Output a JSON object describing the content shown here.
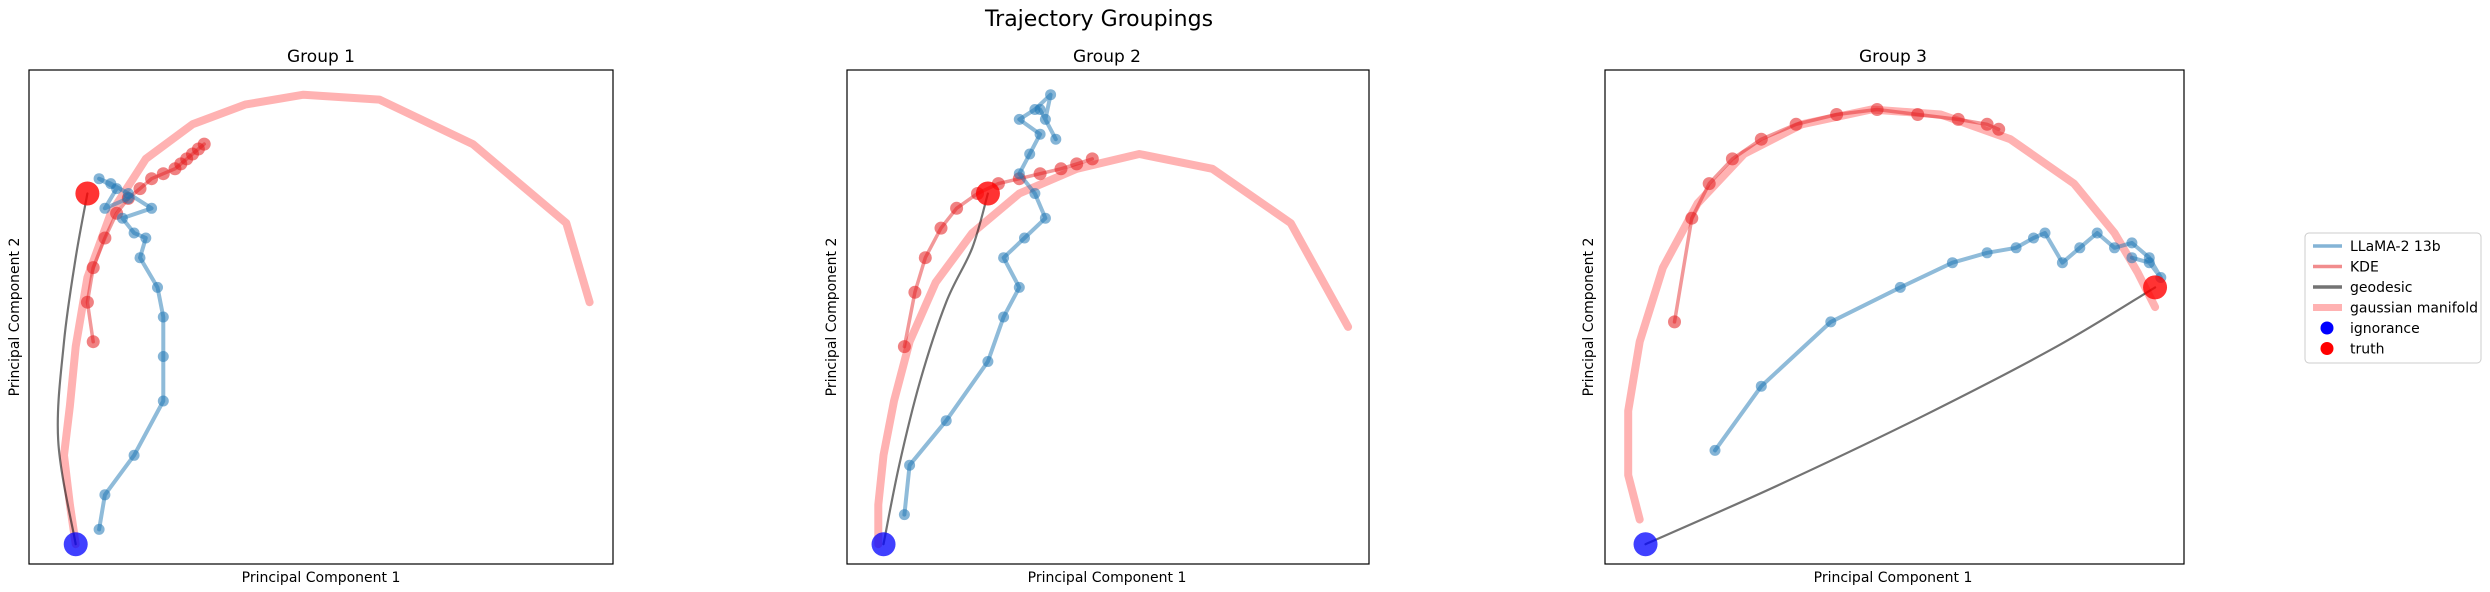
{
  "figure": {
    "title": "Trajectory Groupings"
  },
  "legend": {
    "placement": "right",
    "entries": [
      {
        "label": "LLaMA-2 13b",
        "kind": "line",
        "color": "#1f77b4",
        "alpha": 0.55
      },
      {
        "label": "KDE",
        "kind": "line",
        "color": "#e31a1c",
        "alpha": 0.5
      },
      {
        "label": "geodesic",
        "kind": "line",
        "color": "#000000",
        "alpha": 0.55
      },
      {
        "label": "gaussian manifold",
        "kind": "thickline",
        "color": "#ff0000",
        "alpha": 0.3
      },
      {
        "label": "ignorance",
        "kind": "dot",
        "color": "#0000ff"
      },
      {
        "label": "truth",
        "kind": "dot",
        "color": "#ff0000"
      }
    ]
  },
  "colors": {
    "llama": "#1f77b4",
    "kde": "#e31a1c",
    "geodesic": "#000000",
    "manifold": "#ff0000",
    "ignorance": "#0000ff",
    "truth": "#ff0000"
  },
  "chart_data": [
    {
      "type": "line",
      "title": "Group 1",
      "xlabel": "Principal Component 1",
      "ylabel": "Principal Component 2",
      "xlim": [
        0,
        100
      ],
      "ylim": [
        0,
        100
      ],
      "xticks": false,
      "yticks": false,
      "series": [
        {
          "name": "gaussian manifold",
          "points": [
            [
              8,
              4
            ],
            [
              7,
              12
            ],
            [
              6,
              22
            ],
            [
              7,
              32
            ],
            [
              8,
              44
            ],
            [
              10,
              58
            ],
            [
              14,
              71
            ],
            [
              20,
              82
            ],
            [
              28,
              89
            ],
            [
              37,
              93
            ],
            [
              47,
              95
            ],
            [
              60,
              94
            ],
            [
              76,
              85
            ],
            [
              92,
              69
            ],
            [
              96,
              53
            ]
          ]
        },
        {
          "name": "geodesic",
          "points": [
            [
              8,
              4
            ],
            [
              5,
              25
            ],
            [
              6,
              45
            ],
            [
              8,
              62
            ],
            [
              10,
              75
            ]
          ]
        },
        {
          "name": "KDE",
          "points": [
            [
              11,
              45
            ],
            [
              10,
              53
            ],
            [
              11,
              60
            ],
            [
              13,
              66
            ],
            [
              15,
              71
            ],
            [
              17,
              74
            ],
            [
              19,
              76
            ],
            [
              21,
              78
            ],
            [
              23,
              79
            ],
            [
              25,
              80
            ],
            [
              26,
              81
            ],
            [
              27,
              82
            ],
            [
              28,
              83
            ],
            [
              29,
              84
            ],
            [
              30,
              85
            ]
          ]
        },
        {
          "name": "LLaMA-2 13b",
          "points": [
            [
              12,
              7
            ],
            [
              13,
              14
            ],
            [
              18,
              22
            ],
            [
              23,
              33
            ],
            [
              23,
              42
            ],
            [
              23,
              50
            ],
            [
              22,
              56
            ],
            [
              19,
              62
            ],
            [
              20,
              66
            ],
            [
              18,
              67
            ],
            [
              16,
              70
            ],
            [
              21,
              72
            ],
            [
              17,
              75
            ],
            [
              14,
              77
            ],
            [
              12,
              78
            ],
            [
              15,
              76
            ],
            [
              13,
              72
            ],
            [
              17,
              74
            ]
          ]
        }
      ],
      "ignorance": [
        8,
        4
      ],
      "truth": [
        10,
        75
      ]
    },
    {
      "type": "line",
      "title": "Group 2",
      "xlabel": "Principal Component 1",
      "ylabel": "Principal Component 2",
      "xlim": [
        0,
        100
      ],
      "ylim": [
        0,
        100
      ],
      "xticks": false,
      "yticks": false,
      "series": [
        {
          "name": "gaussian manifold",
          "points": [
            [
              6,
              4
            ],
            [
              6,
              12
            ],
            [
              7,
              22
            ],
            [
              9,
              33
            ],
            [
              12,
              45
            ],
            [
              17,
              57
            ],
            [
              24,
              67
            ],
            [
              33,
              75
            ],
            [
              44,
              80
            ],
            [
              56,
              83
            ],
            [
              70,
              80
            ],
            [
              85,
              69
            ],
            [
              96,
              48
            ]
          ]
        },
        {
          "name": "geodesic",
          "points": [
            [
              7,
              4
            ],
            [
              10,
              20
            ],
            [
              14,
              37
            ],
            [
              19,
              53
            ],
            [
              24,
              64
            ],
            [
              27,
              75
            ]
          ]
        },
        {
          "name": "KDE",
          "points": [
            [
              11,
              44
            ],
            [
              13,
              55
            ],
            [
              15,
              62
            ],
            [
              18,
              68
            ],
            [
              21,
              72
            ],
            [
              25,
              75
            ],
            [
              29,
              77
            ],
            [
              33,
              78
            ],
            [
              37,
              79
            ],
            [
              41,
              80
            ],
            [
              44,
              81
            ],
            [
              47,
              82
            ]
          ]
        },
        {
          "name": "LLaMA-2 13b",
          "points": [
            [
              11,
              10
            ],
            [
              12,
              20
            ],
            [
              19,
              29
            ],
            [
              27,
              41
            ],
            [
              30,
              50
            ],
            [
              33,
              56
            ],
            [
              30,
              62
            ],
            [
              34,
              66
            ],
            [
              38,
              70
            ],
            [
              36,
              75
            ],
            [
              33,
              79
            ],
            [
              35,
              83
            ],
            [
              37,
              87
            ],
            [
              33,
              90
            ],
            [
              36,
              92
            ],
            [
              39,
              95
            ],
            [
              38,
              90
            ],
            [
              40,
              86
            ],
            [
              37,
              92
            ]
          ]
        }
      ],
      "ignorance": [
        7,
        4
      ],
      "truth": [
        27,
        75
      ]
    },
    {
      "type": "line",
      "title": "Group 3",
      "xlabel": "Principal Component 1",
      "ylabel": "Principal Component 2",
      "xlim": [
        0,
        100
      ],
      "ylim": [
        0,
        100
      ],
      "xticks": false,
      "yticks": false,
      "series": [
        {
          "name": "gaussian manifold",
          "points": [
            [
              6,
              9
            ],
            [
              4,
              18
            ],
            [
              4,
              31
            ],
            [
              6,
              45
            ],
            [
              10,
              60
            ],
            [
              16,
              73
            ],
            [
              24,
              83
            ],
            [
              34,
              89
            ],
            [
              46,
              92
            ],
            [
              58,
              91
            ],
            [
              70,
              86
            ],
            [
              81,
              77
            ],
            [
              88,
              67
            ],
            [
              92,
              59
            ],
            [
              95,
              52
            ]
          ]
        },
        {
          "name": "geodesic",
          "points": [
            [
              7,
              4
            ],
            [
              30,
              16
            ],
            [
              55,
              30
            ],
            [
              78,
              44
            ],
            [
              95,
              56
            ]
          ]
        },
        {
          "name": "KDE",
          "points": [
            [
              12,
              49
            ],
            [
              15,
              70
            ],
            [
              18,
              77
            ],
            [
              22,
              82
            ],
            [
              27,
              86
            ],
            [
              33,
              89
            ],
            [
              40,
              91
            ],
            [
              47,
              92
            ],
            [
              54,
              91
            ],
            [
              61,
              90
            ],
            [
              66,
              89
            ],
            [
              68,
              88
            ]
          ]
        },
        {
          "name": "LLaMA-2 13b",
          "points": [
            [
              19,
              23
            ],
            [
              27,
              36
            ],
            [
              39,
              49
            ],
            [
              51,
              56
            ],
            [
              60,
              61
            ],
            [
              66,
              63
            ],
            [
              71,
              64
            ],
            [
              74,
              66
            ],
            [
              76,
              67
            ],
            [
              79,
              61
            ],
            [
              82,
              64
            ],
            [
              85,
              67
            ],
            [
              88,
              64
            ],
            [
              91,
              65
            ],
            [
              94,
              62
            ],
            [
              96,
              58
            ],
            [
              94,
              61
            ],
            [
              91,
              62
            ]
          ]
        }
      ],
      "ignorance": [
        7,
        4
      ],
      "truth": [
        95,
        56
      ]
    }
  ]
}
